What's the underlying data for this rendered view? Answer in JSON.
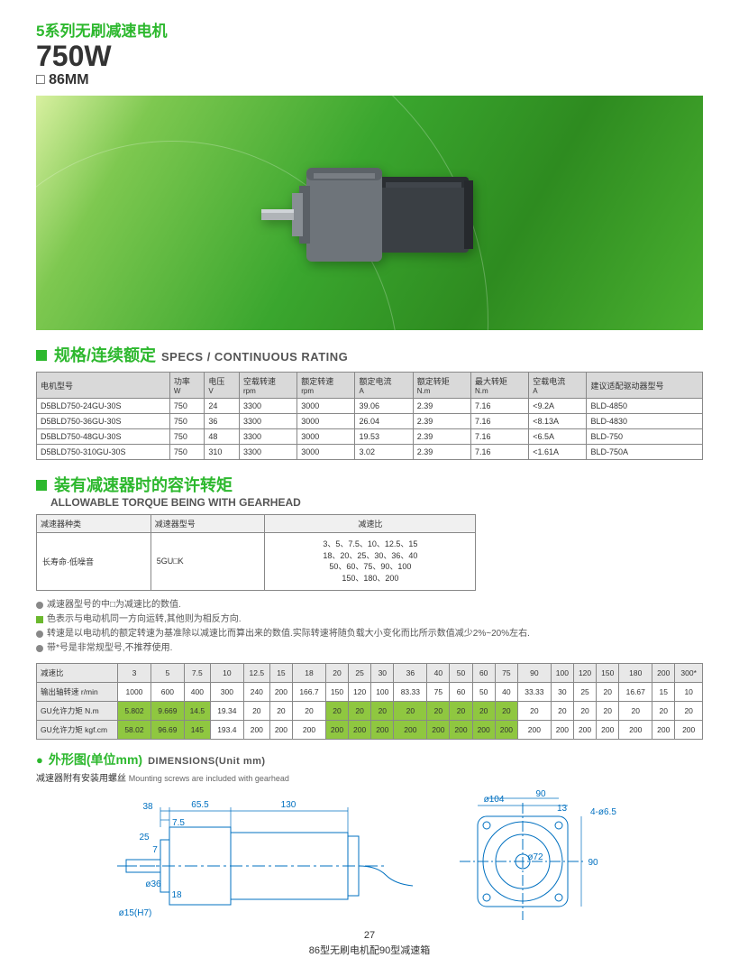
{
  "header": {
    "series_title": "5系列无刷减速电机",
    "power": "750W",
    "size": "□ 86MM"
  },
  "specs_section": {
    "title_zh": "规格/连续额定",
    "title_en": "SPECS / CONTINUOUS RATING",
    "columns": [
      {
        "zh": "电机型号",
        "sub": ""
      },
      {
        "zh": "功率",
        "sub": "W"
      },
      {
        "zh": "电压",
        "sub": "V"
      },
      {
        "zh": "空载转速",
        "sub": "rpm"
      },
      {
        "zh": "额定转速",
        "sub": "rpm"
      },
      {
        "zh": "额定电流",
        "sub": "A"
      },
      {
        "zh": "额定转矩",
        "sub": "N.m"
      },
      {
        "zh": "最大转矩",
        "sub": "N.m"
      },
      {
        "zh": "空载电流",
        "sub": "A"
      },
      {
        "zh": "建议适配驱动器型号",
        "sub": ""
      }
    ],
    "rows": [
      [
        "D5BLD750-24GU-30S",
        "750",
        "24",
        "3300",
        "3000",
        "39.06",
        "2.39",
        "7.16",
        "<9.2A",
        "BLD-4850"
      ],
      [
        "D5BLD750-36GU-30S",
        "750",
        "36",
        "3300",
        "3000",
        "26.04",
        "2.39",
        "7.16",
        "<8.13A",
        "BLD-4830"
      ],
      [
        "D5BLD750-48GU-30S",
        "750",
        "48",
        "3300",
        "3000",
        "19.53",
        "2.39",
        "7.16",
        "<6.5A",
        "BLD-750"
      ],
      [
        "D5BLD750-310GU-30S",
        "750",
        "310",
        "3300",
        "3000",
        "3.02",
        "2.39",
        "7.16",
        "<1.61A",
        "BLD-750A"
      ]
    ]
  },
  "gear_section": {
    "title_zh": "装有减速器时的容许转矩",
    "title_en": "ALLOWABLE TORQUE BEING WITH GEARHEAD",
    "col_type": "减速器种类",
    "col_model": "减速器型号",
    "col_ratio": "减速比",
    "type_val": "长寿命·低噪音",
    "model_val": "5GU□K",
    "ratios": "3、5、7.5、10、12.5、15\n18、20、25、30、36、40\n50、60、75、90、100\n150、180、200"
  },
  "notes": {
    "n1": "减速器型号的中□为减速比的数值.",
    "n2": "色表示与电动机同一方向运转,其他则为相反方向.",
    "n3": "转速是以电动机的额定转速为基准除以减速比而算出来的数值.实际转速将随负载大小变化而比所示数值减少2%~20%左右.",
    "n4": "带*号是非常规型号,不推荐使用."
  },
  "torque_table": {
    "row_labels": [
      "减速比",
      "输出轴转速 r/min",
      "GU允许力矩 N.m",
      "GU允许力矩 kgf.cm"
    ],
    "ratios": [
      "3",
      "5",
      "7.5",
      "10",
      "12.5",
      "15",
      "18",
      "20",
      "25",
      "30",
      "36",
      "40",
      "50",
      "60",
      "75",
      "90",
      "100",
      "120",
      "150",
      "180",
      "200",
      "300*"
    ],
    "speed": [
      "1000",
      "600",
      "400",
      "300",
      "240",
      "200",
      "166.7",
      "150",
      "120",
      "100",
      "83.33",
      "75",
      "60",
      "50",
      "40",
      "33.33",
      "30",
      "25",
      "20",
      "16.67",
      "15",
      "10"
    ],
    "nm": [
      "5.802",
      "9.669",
      "14.5",
      "19.34",
      "20",
      "20",
      "20",
      "20",
      "20",
      "20",
      "20",
      "20",
      "20",
      "20",
      "20",
      "20",
      "20",
      "20",
      "20",
      "20",
      "20",
      "20"
    ],
    "kgfcm": [
      "58.02",
      "96.69",
      "145",
      "193.4",
      "200",
      "200",
      "200",
      "200",
      "200",
      "200",
      "200",
      "200",
      "200",
      "200",
      "200",
      "200",
      "200",
      "200",
      "200",
      "200",
      "200",
      "200"
    ],
    "highlight_nm": [
      true,
      true,
      true,
      false,
      false,
      false,
      false,
      true,
      true,
      true,
      true,
      true,
      true,
      true,
      true,
      false,
      false,
      false,
      false,
      false,
      false,
      false
    ],
    "highlight_kgfcm": [
      true,
      true,
      true,
      false,
      false,
      false,
      false,
      true,
      true,
      true,
      true,
      true,
      true,
      true,
      true,
      false,
      false,
      false,
      false,
      false,
      false,
      false
    ]
  },
  "dimensions": {
    "title_zh": "外形图(单位mm)",
    "title_en": "DIMENSIONS(Unit mm)",
    "sub_zh": "减速器附有安装用螺丝",
    "sub_en": "Mounting screws are included with gearhead",
    "side": {
      "d1": "38",
      "d2": "65.5",
      "d3": "130",
      "d4": "7.5",
      "d5": "25",
      "d6": "7",
      "phi36": "ø36",
      "d18": "18",
      "phi15": "ø15(H7)"
    },
    "front": {
      "phi104": "ø104",
      "d90": "90",
      "d13": "13",
      "holes": "4-ø6.5",
      "d72": "ø72",
      "v90": "90"
    }
  },
  "footer": {
    "page": "27",
    "caption": "86型无刷电机配90型减速箱"
  },
  "colors": {
    "brand_green": "#2db82e",
    "highlight_green": "#8fc740",
    "table_border": "#888888",
    "header_grey": "#d9d9d9"
  }
}
